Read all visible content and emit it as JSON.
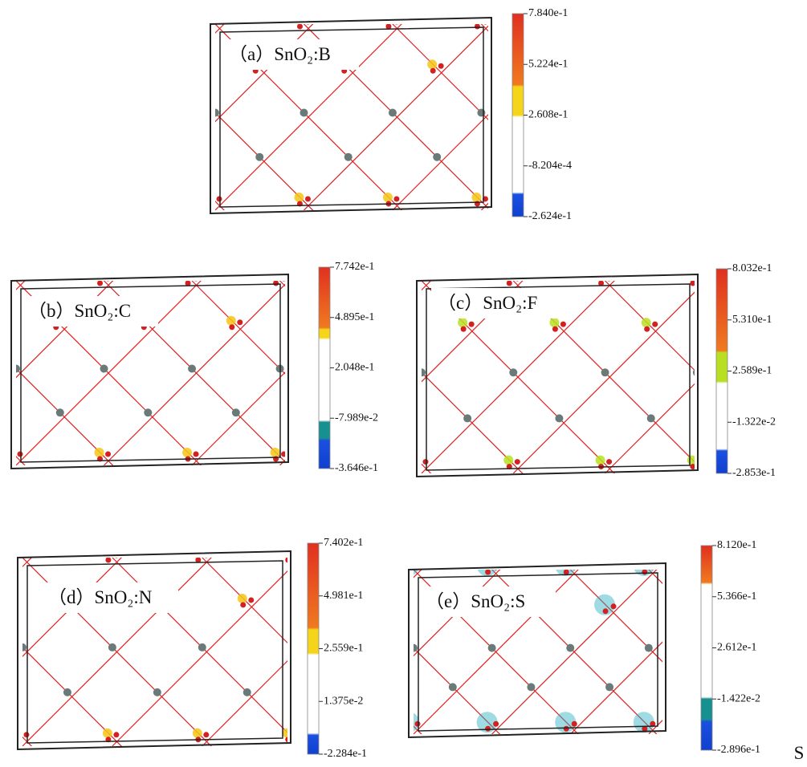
{
  "panels": [
    {
      "label": "（a）SnO₂:B",
      "colorbar": [
        "7.840e-1",
        "5.224e-1",
        "2.608e-1",
        "-8.204e-4",
        "-2.624e-1"
      ]
    },
    {
      "label": "（b）SnO₂:C",
      "colorbar": [
        "7.742e-1",
        "4.895e-1",
        "2.048e-1",
        "-7.989e-2",
        "-3.646e-1"
      ]
    },
    {
      "label": "（c）SnO₂:F",
      "colorbar": [
        "8.032e-1",
        "5.310e-1",
        "2.589e-1",
        "-1.322e-2",
        "-2.853e-1"
      ]
    },
    {
      "label": "（d）SnO₂:N",
      "colorbar": [
        "7.402e-1",
        "4.981e-1",
        "2.559e-1",
        "1.375e-2",
        "-2.284e-1"
      ]
    },
    {
      "label": "（e）SnO₂:S",
      "colorbar": [
        "8.120e-1",
        "5.366e-1",
        "2.612e-1",
        "-1.422e-2",
        "-2.896e-1"
      ]
    }
  ],
  "footer": "S"
}
